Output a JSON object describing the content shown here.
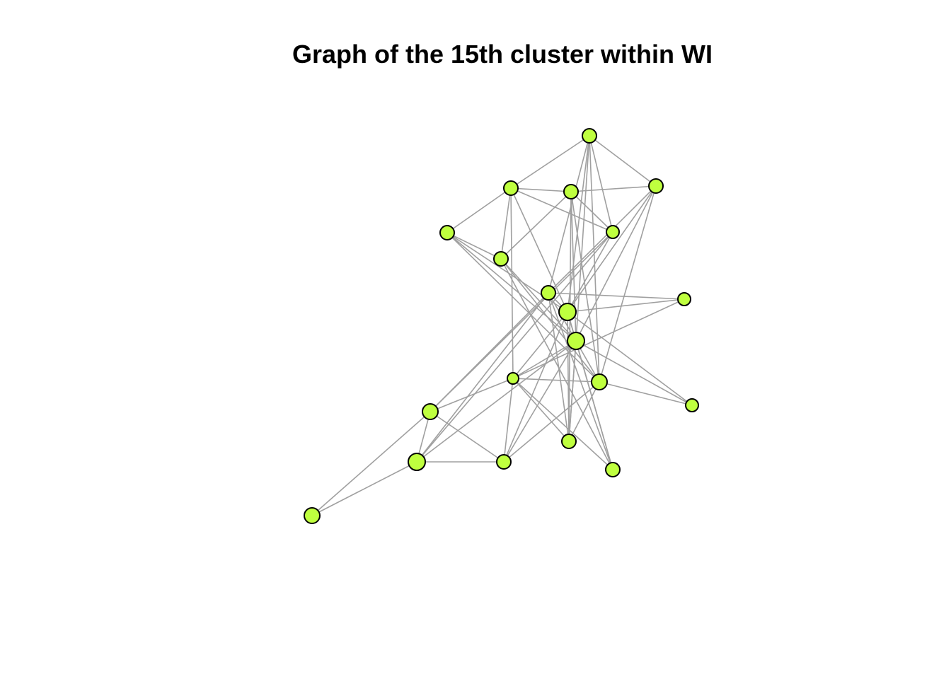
{
  "chart_data": {
    "type": "network",
    "title": "Graph of the 15th cluster within WI",
    "node_count": 20,
    "edge_count": 69,
    "colors": {
      "node_fill": "#bfff3f",
      "node_stroke": "#000000",
      "edge": "#a0a0a0",
      "background": "#ffffff"
    }
  }
}
